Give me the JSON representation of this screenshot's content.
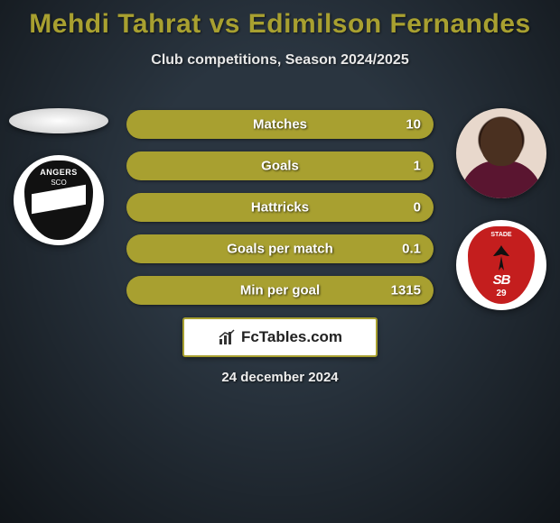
{
  "title": "Mehdi Tahrat vs Edimilson Fernandes",
  "title_color": "#a8a030",
  "subtitle": "Club competitions, Season 2024/2025",
  "background_color": "#2a3540",
  "left_player": {
    "club_name": "ANGERS",
    "club_sub": "SCO"
  },
  "right_player": {
    "club_sub1": "STADE",
    "club_sub2": "SB",
    "club_sub3": "29"
  },
  "bars": {
    "track_color": "#a8a030",
    "fill_color": "#736b20",
    "items": [
      {
        "label": "Matches",
        "left": "",
        "right": "10",
        "left_pct": 0,
        "right_pct": 100
      },
      {
        "label": "Goals",
        "left": "",
        "right": "1",
        "left_pct": 0,
        "right_pct": 100
      },
      {
        "label": "Hattricks",
        "left": "",
        "right": "0",
        "left_pct": 0,
        "right_pct": 100
      },
      {
        "label": "Goals per match",
        "left": "",
        "right": "0.1",
        "left_pct": 0,
        "right_pct": 100
      },
      {
        "label": "Min per goal",
        "left": "",
        "right": "1315",
        "left_pct": 0,
        "right_pct": 100
      }
    ]
  },
  "footer_brand": "FcTables.com",
  "date": "24 december 2024"
}
